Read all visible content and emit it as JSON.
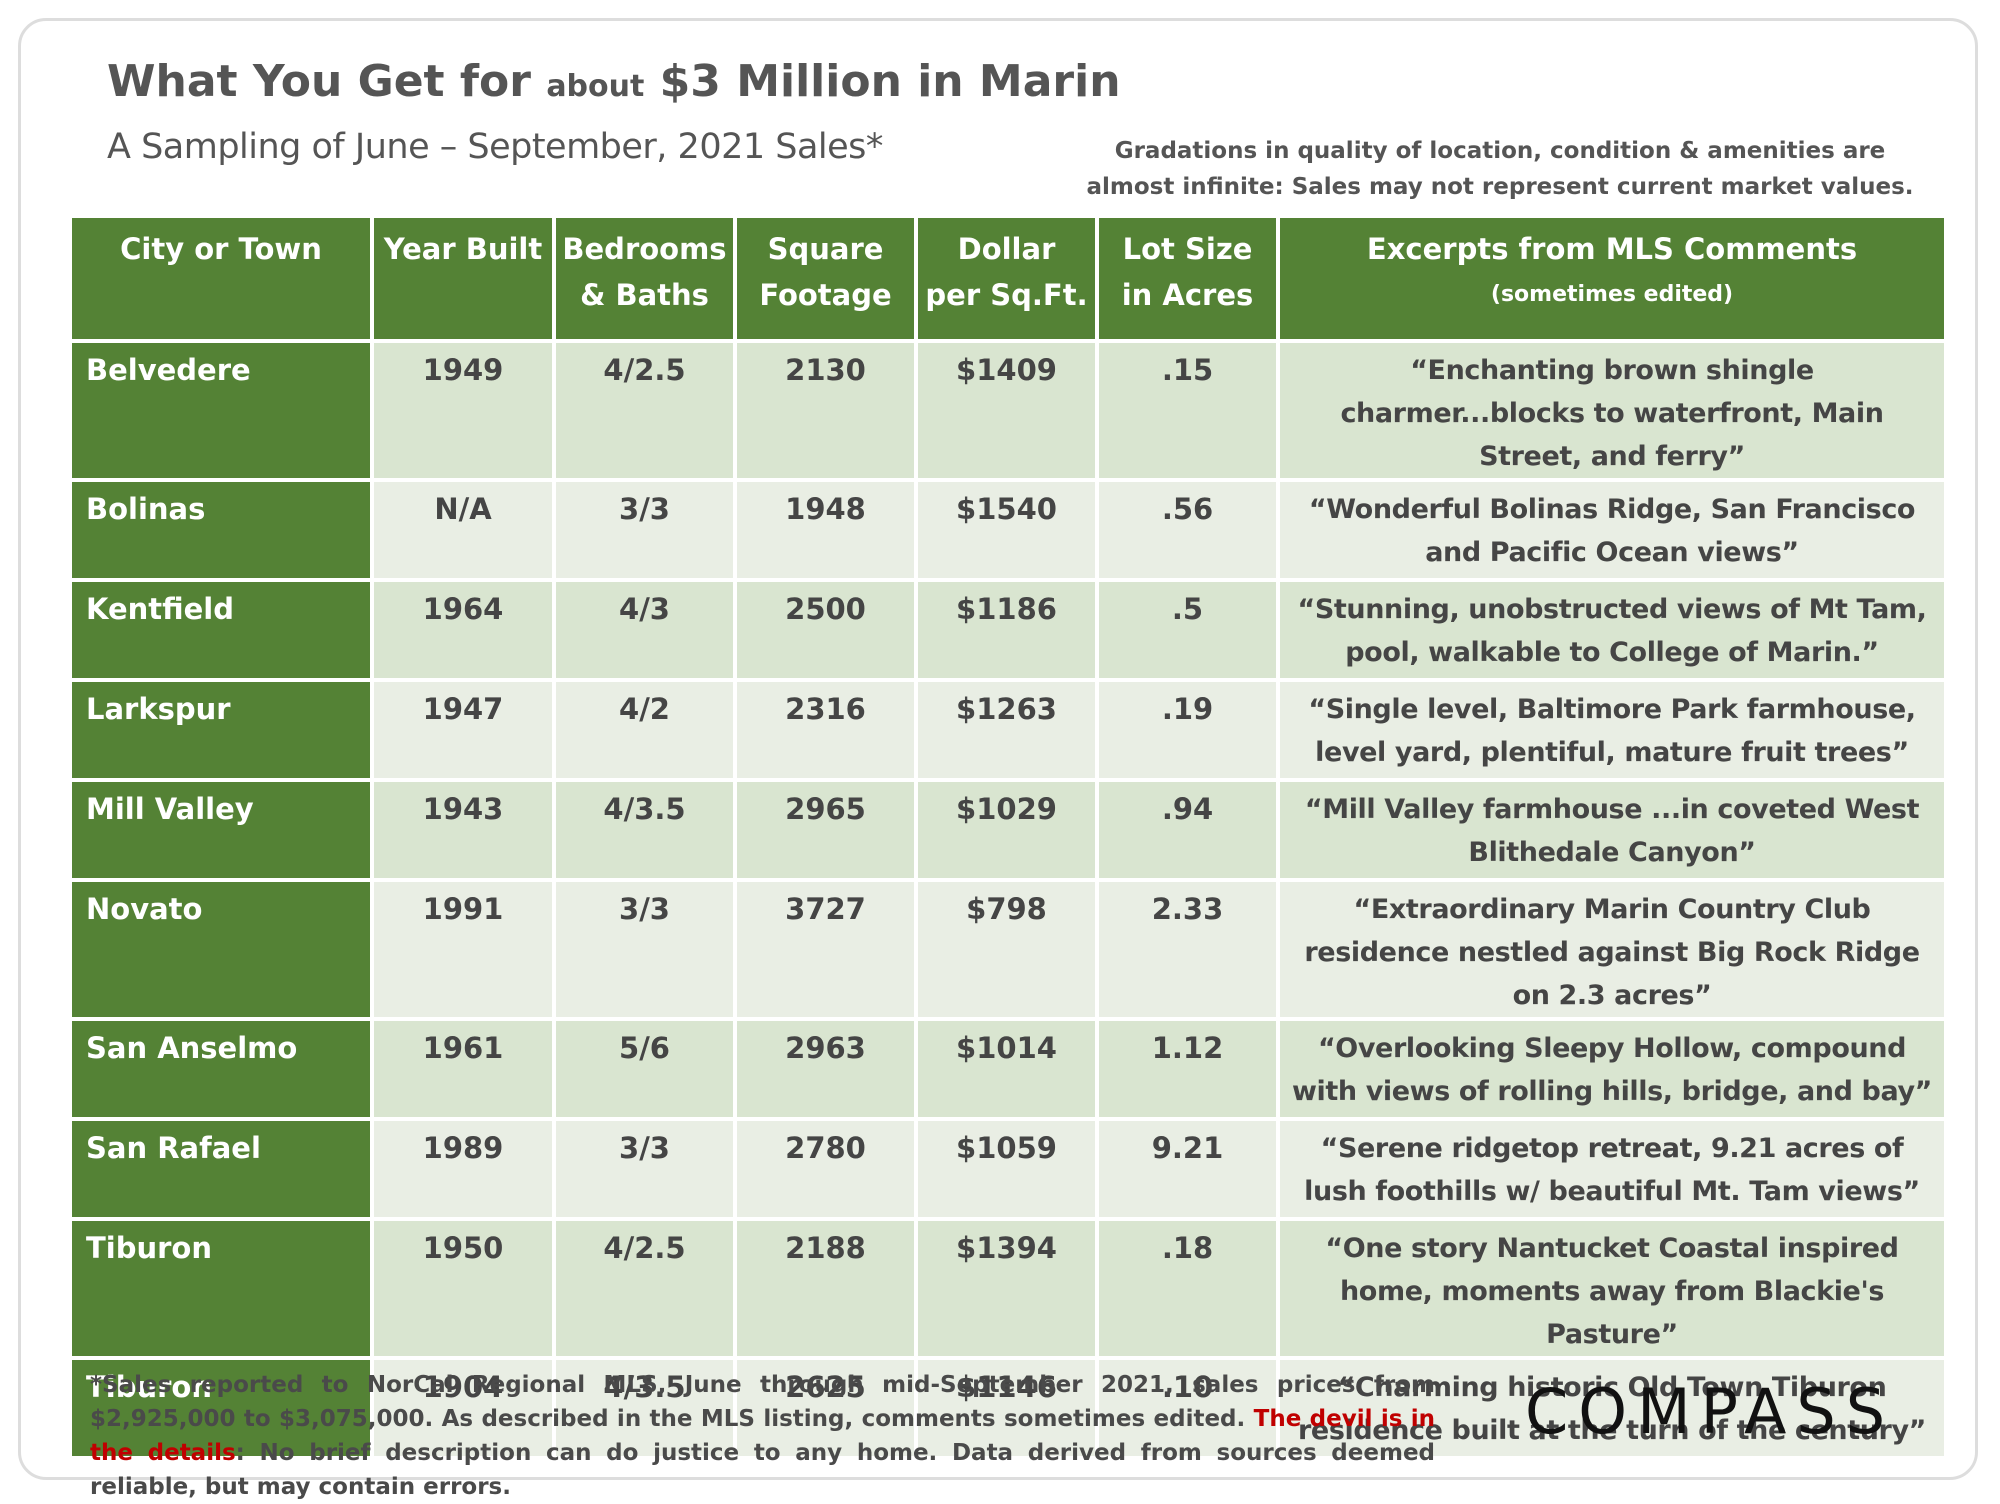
{
  "header": {
    "title": {
      "lead": "What You Get for",
      "small": "about",
      "tail": "$3 Million in Marin"
    },
    "subtitle": "A Sampling of June – September, 2021 Sales*",
    "note": [
      "Gradations in quality of location, condition & amenities are",
      "almost infinite: Sales may not represent current market values."
    ]
  },
  "table": {
    "columns": [
      [
        "City or Town"
      ],
      [
        "Year Built"
      ],
      [
        "Bedrooms",
        "& Baths"
      ],
      [
        "Square",
        "Footage"
      ],
      [
        "Dollar",
        "per Sq.Ft."
      ],
      [
        "Lot Size",
        "in Acres"
      ],
      [
        "Excerpts from MLS Comments",
        "(sometimes edited)"
      ]
    ],
    "rows": [
      [
        "Belvedere",
        "1949",
        "4/2.5",
        "2130",
        "$1409",
        ".15",
        "“Enchanting brown shingle charmer...blocks to waterfront, Main Street, and ferry”"
      ],
      [
        "Bolinas",
        "N/A",
        "3/3",
        "1948",
        "$1540",
        ".56",
        "“Wonderful Bolinas Ridge, San Francisco and Pacific Ocean views”"
      ],
      [
        "Kentfield",
        "1964",
        "4/3",
        "2500",
        "$1186",
        ".5",
        "“Stunning, unobstructed views of Mt Tam, pool, walkable to College of Marin.”"
      ],
      [
        "Larkspur",
        "1947",
        "4/2",
        "2316",
        "$1263",
        ".19",
        "“Single level, Baltimore Park farmhouse, level yard, plentiful, mature fruit trees”"
      ],
      [
        "Mill Valley",
        "1943",
        "4/3.5",
        "2965",
        "$1029",
        ".94",
        "“Mill Valley farmhouse ...in coveted West Blithedale Canyon”"
      ],
      [
        "Novato",
        "1991",
        "3/3",
        "3727",
        "$798",
        "2.33",
        "“Extraordinary Marin Country Club residence nestled against Big Rock Ridge on 2.3 acres”"
      ],
      [
        "San Anselmo",
        "1961",
        "5/6",
        "2963",
        "$1014",
        "1.12",
        "“Overlooking Sleepy Hollow, compound with views of rolling hills, bridge, and bay”"
      ],
      [
        "San Rafael",
        "1989",
        "3/3",
        "2780",
        "$1059",
        "9.21",
        "“Serene ridgetop retreat, 9.21 acres of lush foothills w/ beautiful Mt. Tam views”"
      ],
      [
        "Tiburon",
        "1950",
        "4/2.5",
        "2188",
        "$1394",
        ".18",
        "“One story Nantucket Coastal inspired home, moments away from Blackie's Pasture”"
      ],
      [
        "Tiburon",
        "1904",
        "4/3.5",
        "2625",
        "$1146",
        ".10",
        "“Charming historic Old Town Tiburon residence built at the turn of the century”"
      ]
    ]
  },
  "footer": {
    "text": "*Sales reported to NorCal Regional MLS, June through mid-September 2021, sales prices from $2,925,000 to $3,075,000. As described in the MLS listing, comments sometimes edited.",
    "highlight": "The devil is in the details",
    "after": ": No brief description can do justice to any home. Data derived from sources deemed reliable, but may contain errors.",
    "logo": "COMPASS"
  }
}
